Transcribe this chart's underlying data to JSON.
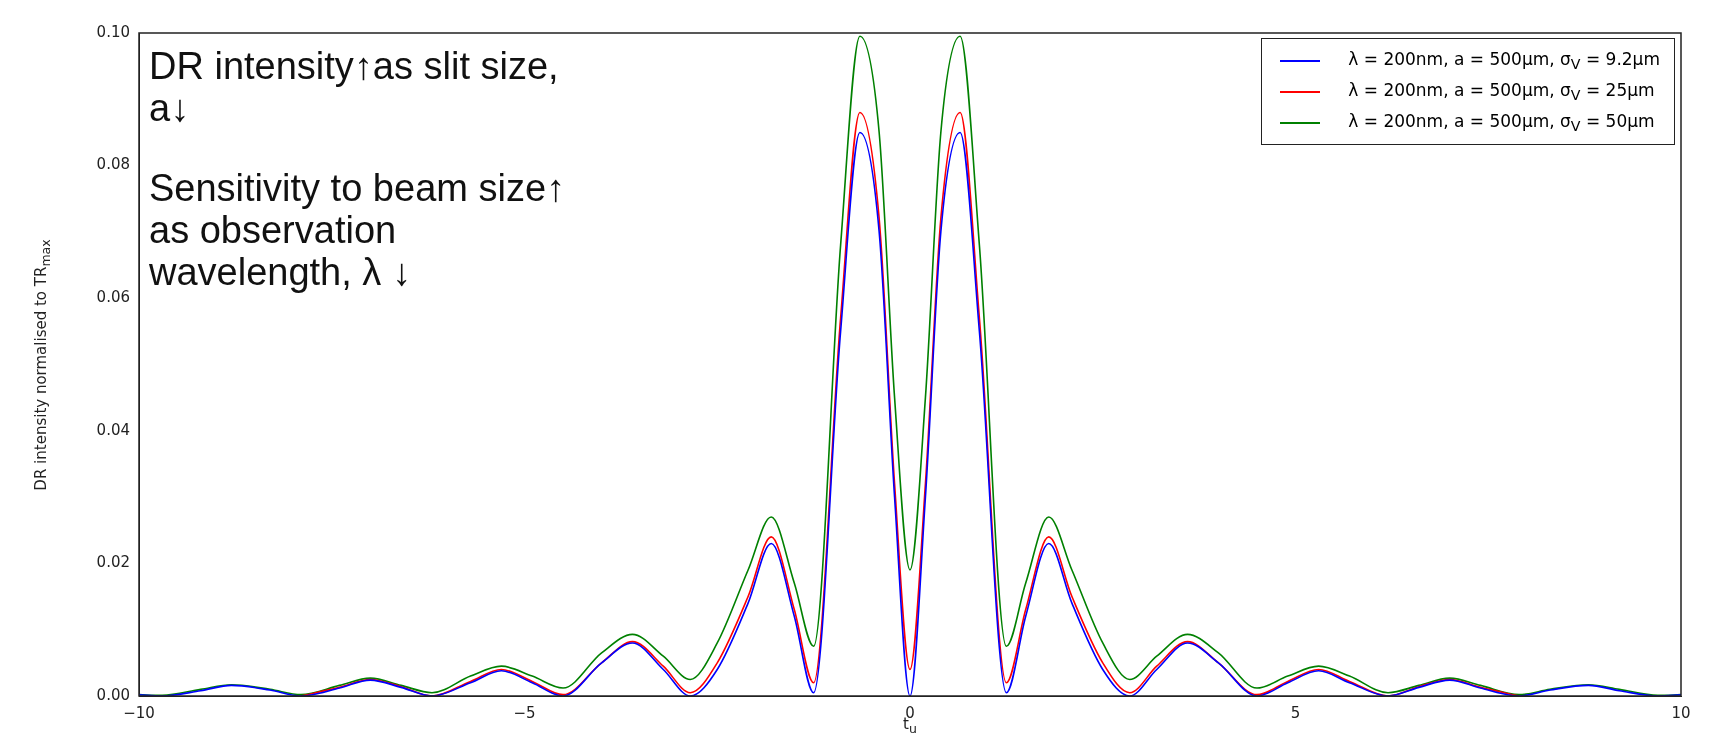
{
  "chart_data": {
    "type": "line",
    "xlabel": "t$_{u}$",
    "ylabel": "DR intensity normalised to TR$_{max}$",
    "annotations": [
      "DR intensity↑as slit size,\na↓",
      "Sensitivity to beam size↑\nas observation\nwavelength, λ ↓"
    ],
    "x": [
      -10,
      -9.7,
      -9.2,
      -8.8,
      -8.3,
      -7.9,
      -7.4,
      -7.0,
      -6.6,
      -6.2,
      -5.7,
      -5.3,
      -4.9,
      -4.5,
      -4.0,
      -3.6,
      -3.2,
      -2.85,
      -2.5,
      -2.1,
      -1.8,
      -1.5,
      -1.25,
      -0.9,
      -0.65,
      -0.4,
      -0.2,
      0,
      0.2,
      0.4,
      0.65,
      0.9,
      1.25,
      1.5,
      1.8,
      2.1,
      2.5,
      2.85,
      3.2,
      3.6,
      4.0,
      4.5,
      4.9,
      5.3,
      5.7,
      6.2,
      6.6,
      7.0,
      7.4,
      7.9,
      8.3,
      8.8,
      9.2,
      9.7,
      10
    ],
    "series": [
      {
        "name": "λ = 200nm, a = 500μm, σ$_{V}$ = 9.2μm",
        "color": "#0000ff",
        "values": [
          0.0002,
          0,
          0.0008,
          0.0016,
          0.0009,
          0,
          0.0012,
          0.0024,
          0.0013,
          0,
          0.002,
          0.0038,
          0.002,
          0,
          0.005,
          0.008,
          0.004,
          0,
          0.004,
          0.014,
          0.023,
          0.012,
          0.0005,
          0.055,
          0.085,
          0.07,
          0.03,
          0,
          0.03,
          0.07,
          0.085,
          0.055,
          0.0005,
          0.012,
          0.023,
          0.014,
          0.004,
          0,
          0.004,
          0.008,
          0.005,
          0,
          0.002,
          0.0038,
          0.002,
          0,
          0.0013,
          0.0024,
          0.0012,
          0,
          0.0009,
          0.0016,
          0.0008,
          0,
          0.0002
        ]
      },
      {
        "name": "λ = 200nm, a = 500μm, σ$_{V}$ = 25μm",
        "color": "#ff0000",
        "values": [
          null,
          null,
          null,
          null,
          null,
          0,
          0.0013,
          0.0025,
          0.0014,
          0,
          0.0022,
          0.004,
          0.0022,
          0.0002,
          0.005,
          0.0082,
          0.0045,
          0.0005,
          0.005,
          0.015,
          0.024,
          0.013,
          0.002,
          0.057,
          0.088,
          0.072,
          0.032,
          0.004,
          0.032,
          0.072,
          0.088,
          0.057,
          0.002,
          0.013,
          0.024,
          0.015,
          0.005,
          0.0005,
          0.0045,
          0.0082,
          0.005,
          0.0002,
          0.0022,
          0.004,
          0.0022,
          0,
          0.0014,
          0.0025,
          0.0013,
          0,
          null,
          null,
          null,
          null,
          null
        ]
      },
      {
        "name": "λ = 200nm, a = 500μm, σ$_{V}$ = 50μm",
        "color": "#008000",
        "values": [
          0.0002,
          0.0001,
          0.001,
          0.0017,
          0.001,
          0.0002,
          0.0016,
          0.0027,
          0.0016,
          0.0005,
          0.003,
          0.0045,
          0.003,
          0.0012,
          0.0065,
          0.0093,
          0.006,
          0.0025,
          0.008,
          0.019,
          0.027,
          0.017,
          0.0075,
          0.068,
          0.0995,
          0.085,
          0.045,
          0.019,
          0.045,
          0.085,
          0.0995,
          0.068,
          0.0075,
          0.017,
          0.027,
          0.019,
          0.008,
          0.0025,
          0.006,
          0.0093,
          0.0065,
          0.0012,
          0.003,
          0.0045,
          0.003,
          0.0005,
          0.0016,
          0.0027,
          0.0016,
          0.0002,
          0.001,
          0.0017,
          0.001,
          0.0001,
          0.0002
        ]
      }
    ],
    "xlim": [
      -10,
      10
    ],
    "xticks": [
      {
        "value": -10,
        "label": "−10"
      },
      {
        "value": -5,
        "label": "−5"
      },
      0,
      5,
      10
    ],
    "ylim": [
      0,
      0.1
    ],
    "yticks": [
      {
        "value": 0,
        "label": "0.00"
      },
      {
        "value": 0.02,
        "label": "0.02"
      },
      {
        "value": 0.04,
        "label": "0.04"
      },
      {
        "value": 0.06,
        "label": "0.06"
      },
      {
        "value": 0.08,
        "label": "0.08"
      },
      {
        "value": 0.1,
        "label": "0.10"
      }
    ],
    "grid": false,
    "legend": "top right",
    "marker": "none",
    "line_style": "solid"
  }
}
